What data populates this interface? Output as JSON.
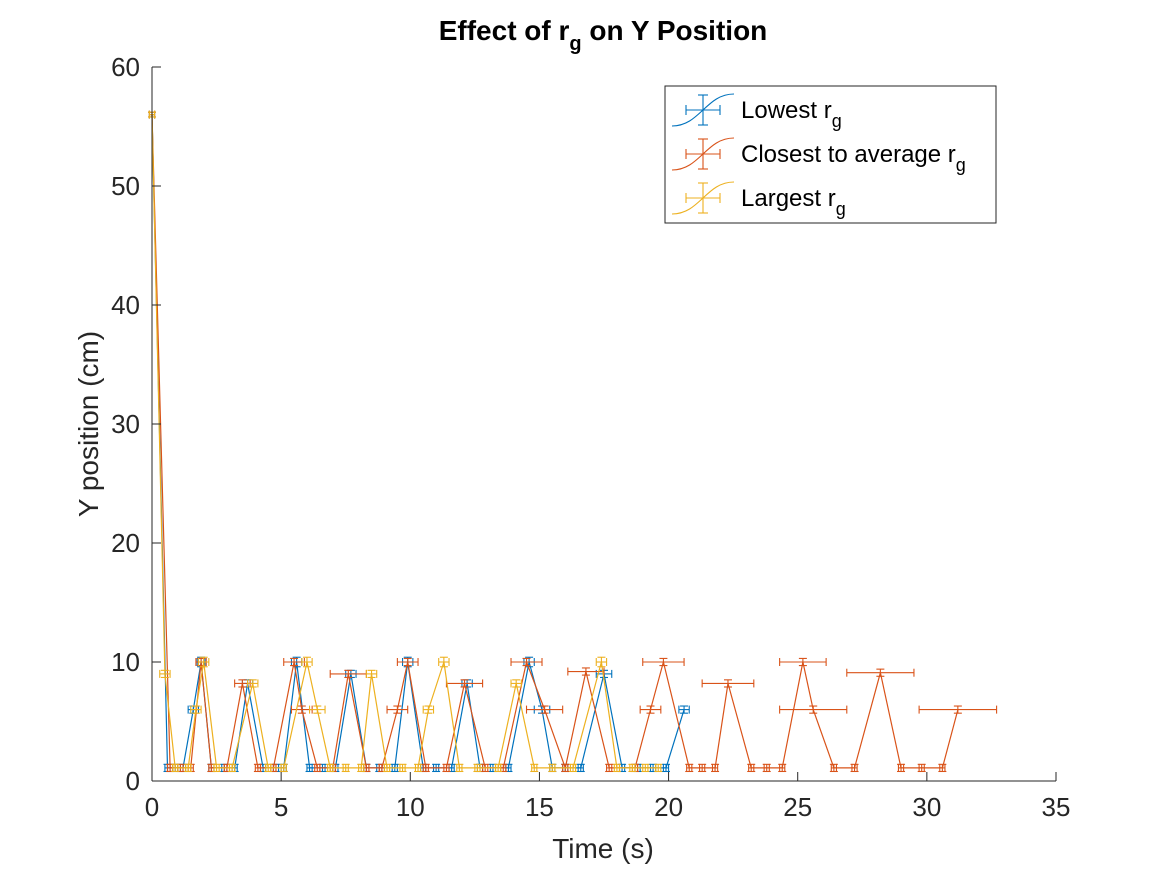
{
  "chart_data": {
    "type": "line",
    "title": "Effect of r",
    "title_subscript": "g",
    "title_suffix": " on  Y Position",
    "xlabel": "Time (s)",
    "ylabel": "Y position (cm)",
    "xlim": [
      0,
      35
    ],
    "ylim": [
      0,
      60
    ],
    "xticks": [
      0,
      5,
      10,
      15,
      20,
      25,
      30,
      35
    ],
    "yticks": [
      0,
      10,
      20,
      30,
      40,
      50,
      60
    ],
    "grid": false,
    "legend_position": "top-right",
    "series": [
      {
        "name": "Lowest r",
        "name_subscript": "g",
        "color": "#0072BD",
        "points": [
          [
            0,
            56,
            0.1,
            0.2
          ],
          [
            0.6,
            1.1,
            0.1,
            0.3
          ],
          [
            0.9,
            1.1,
            0.1,
            0.3
          ],
          [
            1.2,
            1.1,
            0.1,
            0.3
          ],
          [
            1.6,
            6.0,
            0.2,
            0.3
          ],
          [
            1.9,
            10.0,
            0.15,
            0.4
          ],
          [
            2.3,
            1.1,
            0.1,
            0.3
          ],
          [
            2.8,
            1.1,
            0.1,
            0.3
          ],
          [
            3.2,
            1.1,
            0.1,
            0.3
          ],
          [
            3.7,
            8.2,
            0.2,
            0.3
          ],
          [
            4.3,
            1.1,
            0.1,
            0.3
          ],
          [
            4.8,
            1.1,
            0.1,
            0.3
          ],
          [
            5.1,
            1.1,
            0.1,
            0.3
          ],
          [
            5.6,
            10.0,
            0.2,
            0.4
          ],
          [
            6.1,
            1.1,
            0.1,
            0.3
          ],
          [
            6.6,
            1.1,
            0.1,
            0.3
          ],
          [
            7.1,
            1.1,
            0.1,
            0.3
          ],
          [
            7.7,
            9.0,
            0.2,
            0.3
          ],
          [
            8.3,
            1.1,
            0.1,
            0.3
          ],
          [
            8.8,
            1.1,
            0.1,
            0.3
          ],
          [
            9.4,
            1.1,
            0.1,
            0.3
          ],
          [
            9.9,
            10.0,
            0.2,
            0.4
          ],
          [
            10.5,
            1.1,
            0.1,
            0.3
          ],
          [
            11.0,
            1.1,
            0.1,
            0.3
          ],
          [
            11.6,
            1.1,
            0.1,
            0.3
          ],
          [
            12.2,
            8.2,
            0.2,
            0.3
          ],
          [
            12.7,
            1.1,
            0.1,
            0.3
          ],
          [
            13.2,
            1.1,
            0.1,
            0.3
          ],
          [
            13.8,
            1.1,
            0.1,
            0.3
          ],
          [
            14.6,
            10.0,
            0.2,
            0.4
          ],
          [
            15.1,
            6.0,
            0.3,
            0.3
          ],
          [
            15.5,
            1.1,
            0.1,
            0.3
          ],
          [
            16.0,
            1.1,
            0.1,
            0.3
          ],
          [
            16.6,
            1.1,
            0.1,
            0.3
          ],
          [
            17.5,
            9.0,
            0.3,
            0.3
          ],
          [
            18.2,
            1.1,
            0.1,
            0.3
          ],
          [
            18.8,
            1.1,
            0.1,
            0.3
          ],
          [
            19.4,
            1.1,
            0.1,
            0.3
          ],
          [
            19.9,
            1.1,
            0.1,
            0.3
          ],
          [
            20.6,
            6.0,
            0.2,
            0.3
          ]
        ]
      },
      {
        "name": "Closest to average r",
        "name_subscript": "g",
        "color": "#D95319",
        "points": [
          [
            0,
            56,
            0.1,
            0.2
          ],
          [
            0.7,
            1.1,
            0.1,
            0.3
          ],
          [
            1.1,
            1.1,
            0.1,
            0.3
          ],
          [
            1.5,
            1.1,
            0.1,
            0.3
          ],
          [
            1.9,
            10.0,
            0.2,
            0.3
          ],
          [
            2.3,
            1.1,
            0.1,
            0.3
          ],
          [
            2.9,
            1.1,
            0.1,
            0.3
          ],
          [
            3.5,
            8.2,
            0.3,
            0.3
          ],
          [
            4.1,
            1.1,
            0.1,
            0.3
          ],
          [
            4.7,
            1.1,
            0.1,
            0.3
          ],
          [
            5.5,
            10.0,
            0.4,
            0.3
          ],
          [
            5.8,
            6.0,
            0.4,
            0.3
          ],
          [
            6.4,
            1.1,
            0.1,
            0.3
          ],
          [
            7.0,
            1.1,
            0.1,
            0.3
          ],
          [
            7.6,
            9.0,
            0.7,
            0.3
          ],
          [
            8.3,
            1.1,
            0.1,
            0.3
          ],
          [
            8.9,
            1.1,
            0.1,
            0.3
          ],
          [
            9.5,
            6.0,
            0.4,
            0.3
          ],
          [
            9.9,
            10.0,
            0.4,
            0.3
          ],
          [
            10.6,
            1.1,
            0.1,
            0.3
          ],
          [
            11.4,
            1.1,
            0.1,
            0.3
          ],
          [
            12.1,
            8.2,
            0.7,
            0.3
          ],
          [
            12.9,
            1.1,
            0.1,
            0.3
          ],
          [
            13.6,
            1.1,
            0.1,
            0.3
          ],
          [
            14.5,
            10.0,
            0.6,
            0.3
          ],
          [
            15.2,
            6.0,
            0.7,
            0.3
          ],
          [
            16.0,
            1.1,
            0.1,
            0.3
          ],
          [
            16.8,
            9.2,
            0.7,
            0.3
          ],
          [
            17.7,
            1.1,
            0.1,
            0.3
          ],
          [
            18.7,
            1.1,
            0.1,
            0.3
          ],
          [
            19.3,
            6.0,
            0.4,
            0.3
          ],
          [
            19.8,
            10.0,
            0.8,
            0.3
          ],
          [
            20.8,
            1.1,
            0.1,
            0.3
          ],
          [
            21.3,
            1.1,
            0.1,
            0.3
          ],
          [
            21.8,
            1.1,
            0.1,
            0.3
          ],
          [
            22.3,
            8.2,
            1.0,
            0.3
          ],
          [
            23.2,
            1.1,
            0.1,
            0.3
          ],
          [
            23.8,
            1.1,
            0.1,
            0.3
          ],
          [
            24.4,
            1.1,
            0.1,
            0.3
          ],
          [
            25.2,
            10.0,
            0.9,
            0.3
          ],
          [
            25.6,
            6.0,
            1.3,
            0.3
          ],
          [
            26.4,
            1.1,
            0.1,
            0.3
          ],
          [
            27.2,
            1.1,
            0.1,
            0.3
          ],
          [
            28.2,
            9.1,
            1.3,
            0.3
          ],
          [
            29.0,
            1.1,
            0.1,
            0.3
          ],
          [
            29.8,
            1.1,
            0.1,
            0.3
          ],
          [
            30.6,
            1.1,
            0.1,
            0.3
          ],
          [
            31.2,
            6.0,
            1.5,
            0.3
          ]
        ]
      },
      {
        "name": "Largest r",
        "name_subscript": "g",
        "color": "#EDB120",
        "points": [
          [
            0,
            56,
            0.1,
            0.2
          ],
          [
            0.5,
            9.0,
            0.2,
            0.3
          ],
          [
            0.9,
            1.1,
            0.1,
            0.3
          ],
          [
            1.4,
            1.1,
            0.1,
            0.3
          ],
          [
            1.7,
            6.0,
            0.2,
            0.3
          ],
          [
            2.0,
            10.0,
            0.2,
            0.4
          ],
          [
            2.5,
            1.1,
            0.1,
            0.3
          ],
          [
            3.1,
            1.1,
            0.1,
            0.3
          ],
          [
            3.9,
            8.2,
            0.2,
            0.3
          ],
          [
            4.5,
            1.1,
            0.1,
            0.3
          ],
          [
            5.1,
            1.1,
            0.1,
            0.3
          ],
          [
            6.0,
            10.0,
            0.2,
            0.4
          ],
          [
            6.4,
            6.0,
            0.3,
            0.3
          ],
          [
            6.9,
            1.1,
            0.1,
            0.3
          ],
          [
            7.5,
            1.1,
            0.1,
            0.3
          ],
          [
            8.1,
            1.1,
            0.1,
            0.3
          ],
          [
            8.5,
            9.0,
            0.2,
            0.3
          ],
          [
            9.1,
            1.1,
            0.1,
            0.3
          ],
          [
            9.7,
            1.1,
            0.1,
            0.3
          ],
          [
            10.3,
            1.1,
            0.1,
            0.3
          ],
          [
            10.7,
            6.0,
            0.2,
            0.3
          ],
          [
            11.3,
            10.0,
            0.2,
            0.4
          ],
          [
            11.9,
            1.1,
            0.1,
            0.3
          ],
          [
            12.6,
            1.1,
            0.1,
            0.3
          ],
          [
            13.4,
            1.1,
            0.1,
            0.3
          ],
          [
            14.1,
            8.2,
            0.2,
            0.3
          ],
          [
            14.8,
            1.1,
            0.1,
            0.3
          ],
          [
            15.5,
            1.1,
            0.1,
            0.3
          ],
          [
            16.3,
            1.1,
            0.1,
            0.3
          ],
          [
            17.4,
            10.0,
            0.2,
            0.4
          ],
          [
            18.0,
            1.1,
            0.1,
            0.3
          ],
          [
            18.6,
            1.1,
            0.1,
            0.3
          ],
          [
            19.1,
            1.1,
            0.1,
            0.3
          ],
          [
            19.6,
            1.1,
            0.1,
            0.3
          ]
        ]
      }
    ]
  }
}
